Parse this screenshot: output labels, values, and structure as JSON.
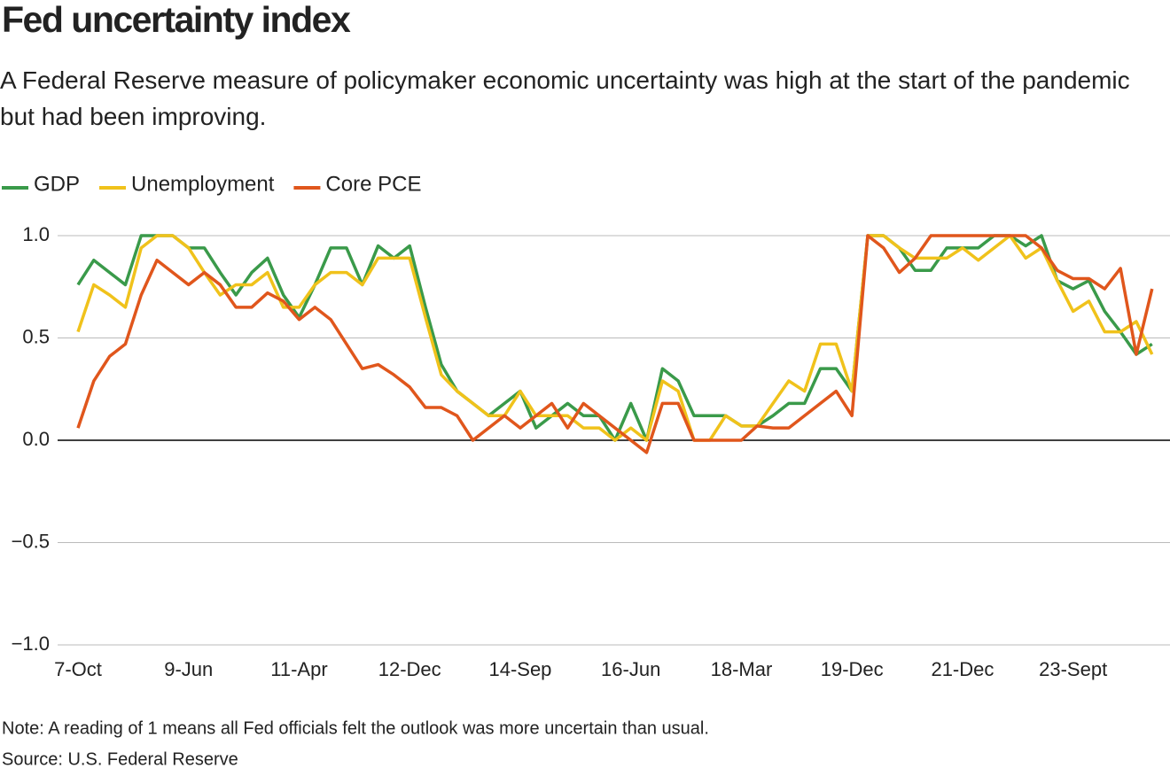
{
  "chart_data": {
    "type": "line",
    "title": "Fed uncertainty index",
    "subtitle": "A Federal Reserve measure of policymaker economic uncertainty was high at the start of the pandemic but had been improving.",
    "note": "Note: A reading of 1 means all Fed officials felt the outlook was more uncertain than usual.",
    "source": "Source: U.S. Federal Reserve",
    "categories": [
      "7-Oct",
      null,
      null,
      null,
      null,
      null,
      null,
      "9-Jun",
      null,
      null,
      null,
      null,
      null,
      null,
      "11-Apr",
      null,
      null,
      null,
      null,
      null,
      null,
      "12-Dec",
      null,
      null,
      null,
      null,
      null,
      null,
      "14-Sep",
      null,
      null,
      null,
      null,
      null,
      null,
      "16-Jun",
      null,
      null,
      null,
      null,
      null,
      null,
      "18-Mar",
      null,
      null,
      null,
      null,
      null,
      null,
      "19-Dec",
      null,
      null,
      null,
      null,
      null,
      null,
      "21-Dec",
      null,
      null,
      null,
      null,
      null,
      null,
      "23-Sept",
      null,
      null,
      null,
      null,
      null
    ],
    "series": [
      {
        "name": "GDP",
        "color": "#3a9a4a",
        "values": [
          0.76,
          0.88,
          0.82,
          0.76,
          1.0,
          1.0,
          1.0,
          0.94,
          0.94,
          0.82,
          0.71,
          0.82,
          0.89,
          0.71,
          0.6,
          0.76,
          0.94,
          0.94,
          0.76,
          0.95,
          0.89,
          0.95,
          0.65,
          0.37,
          0.24,
          0.18,
          0.12,
          0.18,
          0.24,
          0.06,
          0.12,
          0.18,
          0.12,
          0.12,
          0.0,
          0.18,
          0.0,
          0.35,
          0.29,
          0.12,
          0.12,
          0.12,
          0.07,
          0.07,
          0.12,
          0.18,
          0.18,
          0.35,
          0.35,
          0.24,
          1.0,
          1.0,
          0.94,
          0.83,
          0.83,
          0.94,
          0.94,
          0.94,
          1.0,
          1.0,
          0.95,
          1.0,
          0.78,
          0.74,
          0.78,
          0.63,
          0.53,
          0.42,
          0.47
        ]
      },
      {
        "name": "Unemployment",
        "color": "#f0c21b",
        "values": [
          0.53,
          0.76,
          0.71,
          0.65,
          0.94,
          1.0,
          1.0,
          0.94,
          0.82,
          0.71,
          0.76,
          0.76,
          0.82,
          0.65,
          0.65,
          0.76,
          0.82,
          0.82,
          0.76,
          0.89,
          0.89,
          0.89,
          0.6,
          0.32,
          0.24,
          0.18,
          0.12,
          0.12,
          0.24,
          0.12,
          0.12,
          0.12,
          0.06,
          0.06,
          0.0,
          0.06,
          0.0,
          0.29,
          0.24,
          0.0,
          0.0,
          0.12,
          0.07,
          0.07,
          0.18,
          0.29,
          0.24,
          0.47,
          0.47,
          0.24,
          1.0,
          1.0,
          0.94,
          0.89,
          0.89,
          0.89,
          0.94,
          0.88,
          0.94,
          1.0,
          0.89,
          0.94,
          0.78,
          0.63,
          0.68,
          0.53,
          0.53,
          0.58,
          0.42
        ]
      },
      {
        "name": "Core PCE",
        "color": "#e0561c",
        "values": [
          0.06,
          0.29,
          0.41,
          0.47,
          0.71,
          0.88,
          0.82,
          0.76,
          0.82,
          0.76,
          0.65,
          0.65,
          0.72,
          0.68,
          0.59,
          0.65,
          0.59,
          0.47,
          0.35,
          0.37,
          0.32,
          0.26,
          0.16,
          0.16,
          0.12,
          0.0,
          0.06,
          0.12,
          0.06,
          0.12,
          0.18,
          0.06,
          0.18,
          0.12,
          0.06,
          0.0,
          -0.06,
          0.18,
          0.18,
          0.0,
          0.0,
          0.0,
          0.0,
          0.07,
          0.06,
          0.06,
          0.12,
          0.18,
          0.24,
          0.12,
          1.0,
          0.94,
          0.82,
          0.89,
          1.0,
          1.0,
          1.0,
          1.0,
          1.0,
          1.0,
          1.0,
          0.94,
          0.83,
          0.79,
          0.79,
          0.74,
          0.84,
          0.42,
          0.74
        ]
      }
    ],
    "ylim": [
      -1,
      1
    ],
    "yticks": [
      {
        "value": 1,
        "label": "1.0"
      },
      {
        "value": 0.5,
        "label": "0.5"
      },
      {
        "value": 0,
        "label": "0.0"
      },
      {
        "value": -0.5,
        "label": "−0.5"
      },
      {
        "value": -1,
        "label": "−1.0"
      }
    ],
    "grid": true
  }
}
